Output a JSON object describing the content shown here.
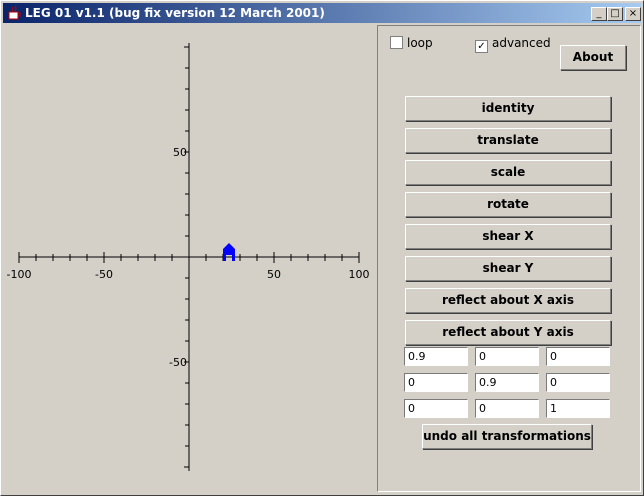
{
  "window": {
    "title": "LEG 01 v1.1 (bug fix version 12 March 2001)",
    "minimize_label": "_",
    "maximize_label": "□",
    "close_label": "×"
  },
  "plot": {
    "x_tick_labels": [
      "-100",
      "-50",
      "50",
      "100"
    ],
    "y_tick_labels": [
      "50",
      "-50"
    ],
    "shape_color": "#0000ff",
    "axis_range": [
      -100,
      100
    ]
  },
  "controls": {
    "loop_label": "loop",
    "loop_checked": false,
    "advanced_label": "advanced",
    "advanced_checked": true,
    "check_mark": "✓",
    "about_label": "About"
  },
  "transform_buttons": [
    "identity",
    "translate",
    "scale",
    "rotate",
    "shear X",
    "shear Y",
    "reflect about X axis",
    "reflect about Y axis"
  ],
  "matrix": [
    [
      "0.9",
      "0",
      "0"
    ],
    [
      "0",
      "0.9",
      "0"
    ],
    [
      "0",
      "0",
      "1"
    ]
  ],
  "undo_label": "undo all transformations"
}
